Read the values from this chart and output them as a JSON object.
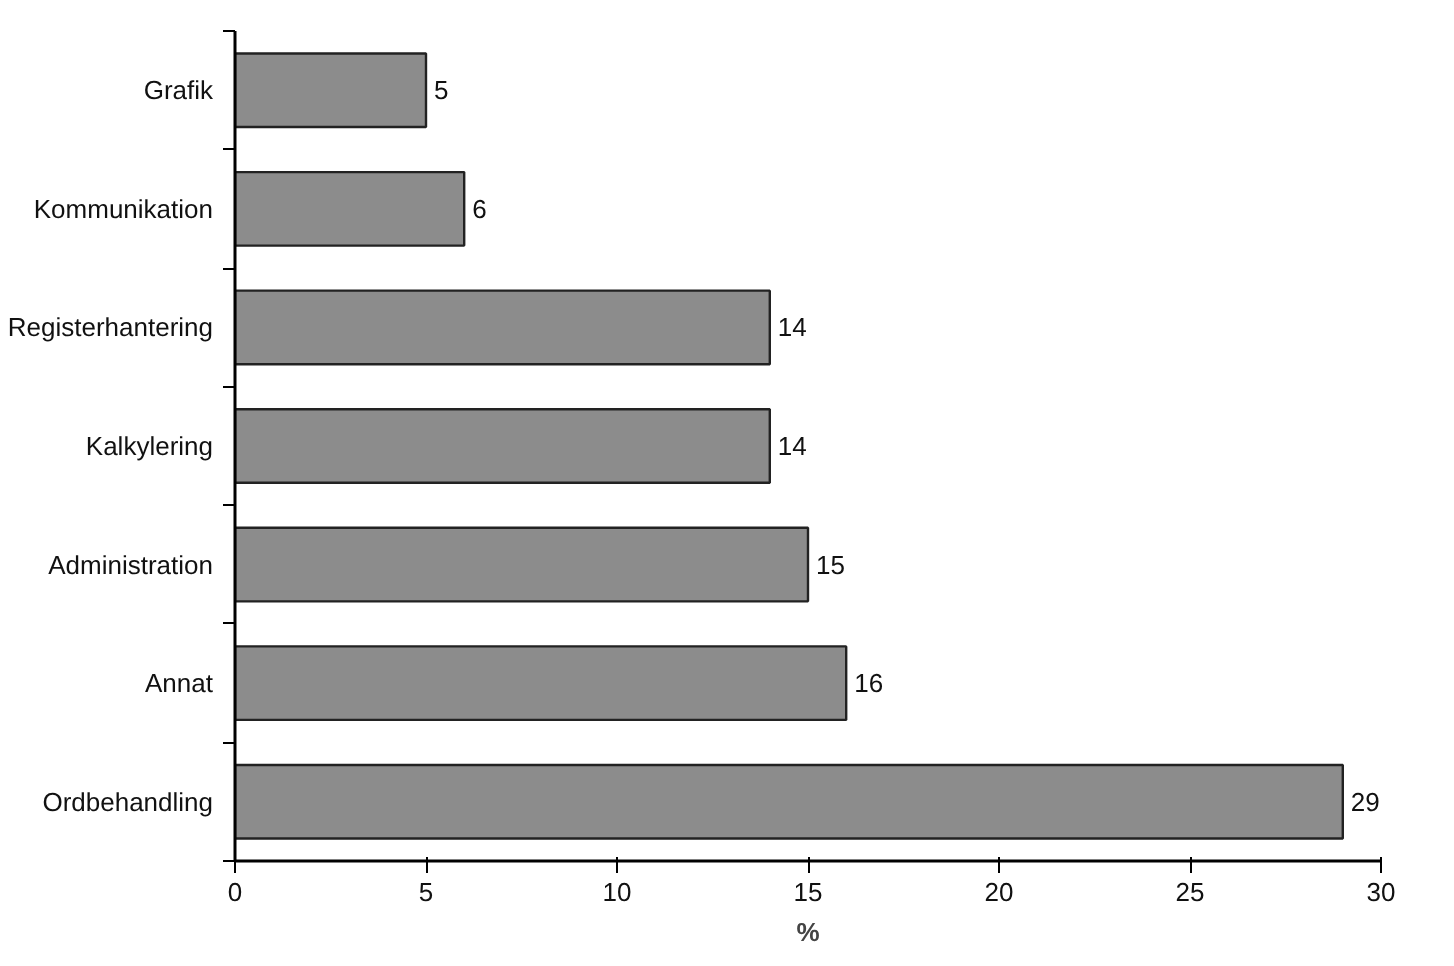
{
  "chart_data": {
    "type": "bar",
    "orientation": "horizontal",
    "xlabel": "%",
    "categories": [
      "Grafik",
      "Kommunikation",
      "Registerhantering",
      "Kalkylering",
      "Administration",
      "Annat",
      "Ordbehandling"
    ],
    "values": [
      5,
      6,
      14,
      14,
      15,
      16,
      29
    ],
    "color": "#8c8c8c",
    "xlim": [
      0,
      30
    ],
    "xticks": [
      0,
      5,
      10,
      15,
      20,
      25,
      30
    ],
    "data_labels": true,
    "grid": false
  }
}
